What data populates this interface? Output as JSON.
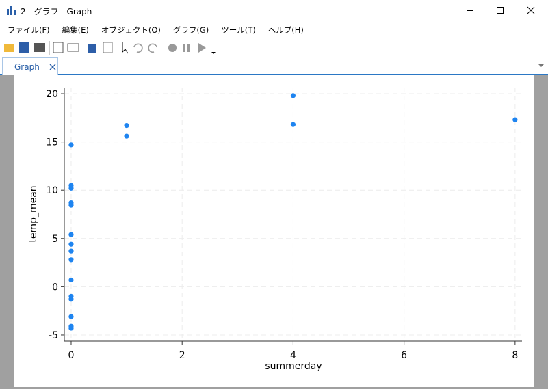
{
  "window": {
    "title": "2 - グラフ - Graph",
    "menu": [
      "ファイル(F)",
      "編集(E)",
      "オブジェクト(O)",
      "グラフ(G)",
      "ツール(T)",
      "ヘルプ(H)"
    ],
    "tab": "Graph"
  },
  "chart_data": {
    "type": "scatter",
    "x_label": "summerday",
    "y_label": "temp_mean",
    "color": "#1e84f0",
    "x": [
      0,
      0,
      0,
      0,
      0,
      0,
      0,
      0,
      0,
      0,
      0,
      0,
      0,
      0,
      0,
      1,
      1,
      4,
      4,
      8
    ],
    "values": [
      14.7,
      10.5,
      10.2,
      8.7,
      8.45,
      5.4,
      4.4,
      3.7,
      2.8,
      0.7,
      -1.0,
      -1.3,
      -3.1,
      -4.1,
      -4.3,
      16.7,
      15.6,
      19.8,
      16.8,
      17.3
    ],
    "xlim": [
      -0.123,
      8.125
    ],
    "xticks": [
      0,
      2,
      4,
      6,
      8
    ],
    "ylim": [
      -5.64,
      20.64
    ],
    "yticks": [
      -5,
      0,
      5,
      10,
      15,
      20
    ],
    "grid": true
  }
}
